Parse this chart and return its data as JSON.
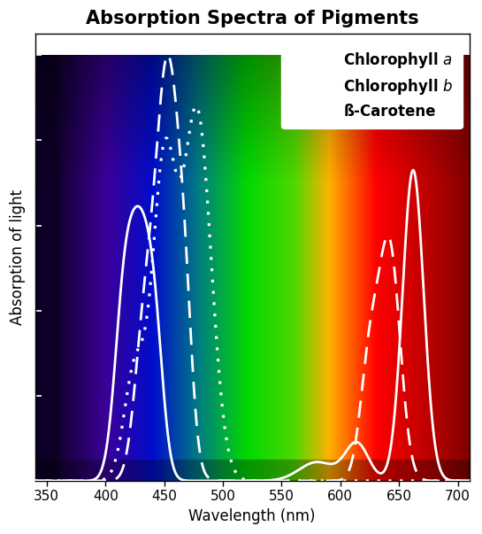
{
  "title": "Absorption Spectra of Pigments",
  "xlabel": "Wavelength (nm)",
  "ylabel": "Absorption of light",
  "xlim": [
    340,
    710
  ],
  "ylim": [
    0,
    1.05
  ],
  "xticks": [
    350,
    400,
    450,
    500,
    550,
    600,
    650,
    700
  ],
  "line_color": "white",
  "line_width": 2.0,
  "title_fontsize": 15,
  "axis_fontsize": 12,
  "tick_fontsize": 11,
  "legend_fontsize": 12,
  "legend_labels": [
    "Chlorophyll $a$",
    "Chlorophyll $b$",
    "ß-Carotene"
  ]
}
